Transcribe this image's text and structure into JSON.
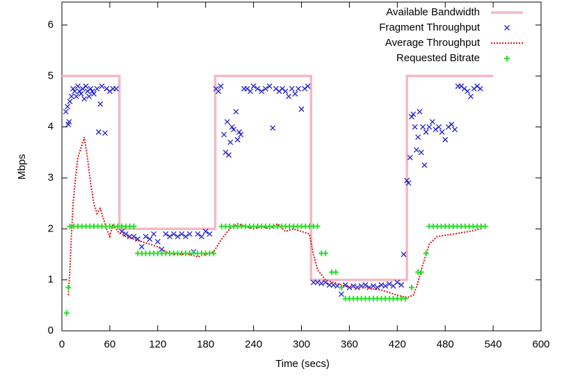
{
  "chart_data": {
    "type": "scatter",
    "xlabel": "Time (secs)",
    "ylabel": "Mbps",
    "xlim": [
      0,
      600
    ],
    "ylim": [
      0,
      6.45
    ],
    "xticks": [
      0,
      60,
      120,
      180,
      240,
      300,
      360,
      420,
      480,
      540,
      600
    ],
    "yticks": [
      0,
      1,
      2,
      3,
      4,
      5,
      6
    ],
    "legend": "top-right",
    "series": [
      {
        "name": "Available Bandwidth",
        "color": "#f4b8c4",
        "marker": "line",
        "x": [
          0,
          72,
          72,
          192,
          192,
          312,
          312,
          432,
          432,
          540
        ],
        "values": [
          5,
          5,
          2,
          2,
          5,
          5,
          1,
          1,
          5,
          5
        ]
      },
      {
        "name": "Fragment Throughput",
        "color": "#1f1fd0",
        "marker": "x",
        "x": [
          5,
          7,
          8,
          9,
          10,
          12,
          14,
          16,
          18,
          20,
          22,
          24,
          26,
          28,
          30,
          32,
          34,
          36,
          38,
          40,
          44,
          46,
          48,
          50,
          54,
          56,
          60,
          64,
          68,
          75,
          80,
          85,
          90,
          95,
          100,
          105,
          110,
          115,
          120,
          125,
          130,
          135,
          140,
          145,
          150,
          155,
          160,
          165,
          170,
          175,
          180,
          185,
          193,
          196,
          199,
          203,
          205,
          207,
          209,
          211,
          213,
          215,
          218,
          220,
          222,
          224,
          228,
          232,
          236,
          240,
          245,
          250,
          255,
          260,
          264,
          268,
          272,
          276,
          280,
          284,
          288,
          292,
          296,
          300,
          304,
          308,
          315,
          320,
          325,
          330,
          335,
          340,
          345,
          350,
          355,
          360,
          365,
          370,
          375,
          380,
          385,
          390,
          395,
          400,
          405,
          410,
          415,
          420,
          425,
          428,
          432,
          434,
          436,
          438,
          440,
          442,
          444,
          446,
          448,
          450,
          452,
          454,
          456,
          460,
          464,
          468,
          472,
          476,
          480,
          484,
          488,
          492,
          496,
          500,
          504,
          508,
          512,
          516,
          520,
          524
        ],
        "values": [
          4.3,
          4.4,
          4.05,
          4.1,
          4.5,
          4.6,
          4.75,
          4.7,
          4.6,
          4.8,
          4.7,
          4.65,
          4.75,
          4.55,
          4.8,
          4.7,
          4.6,
          4.75,
          4.7,
          4.65,
          4.75,
          3.9,
          4.45,
          4.8,
          3.88,
          4.75,
          4.7,
          4.75,
          4.75,
          1.95,
          1.9,
          1.85,
          1.85,
          1.8,
          1.65,
          1.85,
          1.8,
          1.9,
          1.75,
          1.6,
          1.9,
          1.85,
          1.9,
          1.85,
          1.9,
          1.85,
          1.9,
          1.55,
          1.9,
          1.85,
          1.95,
          1.9,
          4.75,
          4.7,
          4.8,
          3.85,
          3.5,
          4.1,
          3.45,
          3.7,
          4.0,
          3.95,
          4.3,
          3.75,
          3.9,
          3.85,
          4.75,
          4.75,
          4.7,
          4.8,
          4.75,
          4.7,
          4.75,
          4.8,
          3.98,
          4.75,
          4.7,
          4.75,
          4.7,
          4.6,
          4.75,
          4.65,
          4.75,
          4.35,
          4.75,
          4.8,
          0.95,
          0.95,
          0.93,
          0.95,
          0.9,
          0.9,
          0.88,
          0.72,
          0.9,
          0.85,
          0.88,
          0.85,
          0.88,
          0.9,
          0.85,
          0.88,
          0.85,
          0.9,
          0.88,
          0.92,
          0.88,
          0.95,
          0.9,
          1.5,
          2.95,
          2.9,
          3.4,
          4.2,
          4.25,
          4.0,
          3.55,
          3.8,
          4.3,
          3.5,
          4.0,
          3.25,
          3.9,
          4.0,
          4.1,
          3.95,
          4.0,
          3.9,
          3.75,
          4.0,
          4.05,
          3.95,
          4.8,
          4.8,
          4.75,
          4.7,
          4.6,
          4.75,
          4.8,
          4.75
        ]
      },
      {
        "name": "Average Throughput",
        "color": "#e01010",
        "marker": "dotted",
        "x": [
          8,
          10,
          12,
          14,
          17,
          20,
          24,
          28,
          32,
          36,
          40,
          44,
          48,
          52,
          56,
          60,
          64,
          70,
          80,
          90,
          100,
          110,
          120,
          130,
          140,
          150,
          160,
          170,
          180,
          190,
          200,
          210,
          220,
          230,
          240,
          250,
          260,
          270,
          280,
          290,
          300,
          310,
          315,
          320,
          330,
          340,
          350,
          360,
          380,
          400,
          420,
          432,
          440,
          445,
          450,
          460,
          470,
          490,
          510,
          525
        ],
        "values": [
          0.7,
          1.2,
          1.9,
          2.5,
          3.0,
          3.4,
          3.6,
          3.8,
          3.4,
          2.9,
          2.5,
          2.3,
          2.4,
          2.2,
          2.0,
          1.85,
          2.1,
          1.95,
          1.85,
          1.8,
          1.75,
          1.7,
          1.65,
          1.55,
          1.5,
          1.5,
          1.5,
          1.45,
          1.5,
          1.55,
          1.8,
          2.0,
          2.1,
          2.05,
          2.0,
          2.05,
          2.0,
          2.1,
          1.95,
          2.0,
          1.95,
          1.9,
          1.5,
          1.2,
          1.0,
          0.95,
          0.9,
          0.85,
          0.85,
          0.8,
          0.7,
          0.65,
          0.7,
          0.9,
          1.2,
          1.7,
          1.85,
          1.9,
          1.95,
          2.0
        ]
      },
      {
        "name": "Requested Bitrate",
        "color": "#22e022",
        "marker": "+",
        "x": [
          6,
          8,
          10,
          15,
          20,
          25,
          30,
          35,
          40,
          45,
          50,
          55,
          60,
          65,
          70,
          75,
          80,
          85,
          90,
          95,
          100,
          105,
          110,
          115,
          120,
          125,
          130,
          135,
          140,
          145,
          150,
          155,
          160,
          165,
          170,
          175,
          180,
          185,
          190,
          200,
          205,
          210,
          215,
          220,
          225,
          230,
          235,
          240,
          245,
          250,
          255,
          260,
          265,
          270,
          275,
          280,
          285,
          290,
          295,
          300,
          305,
          310,
          315,
          320,
          325,
          330,
          338,
          343,
          350,
          355,
          360,
          365,
          370,
          375,
          380,
          385,
          390,
          395,
          400,
          405,
          410,
          415,
          420,
          425,
          430,
          438,
          446,
          450,
          456,
          460,
          465,
          470,
          475,
          480,
          485,
          490,
          495,
          500,
          505,
          510,
          515,
          520,
          525,
          530
        ],
        "values": [
          0.35,
          0.85,
          2.05,
          2.05,
          2.05,
          2.05,
          2.05,
          2.05,
          2.05,
          2.05,
          2.05,
          2.05,
          2.05,
          2.05,
          2.05,
          2.05,
          2.05,
          2.05,
          2.05,
          1.52,
          1.52,
          1.52,
          1.52,
          1.52,
          1.52,
          1.52,
          1.52,
          1.52,
          1.52,
          1.52,
          1.52,
          1.52,
          1.52,
          1.52,
          1.52,
          1.52,
          1.52,
          1.52,
          1.52,
          2.05,
          2.05,
          2.05,
          2.05,
          2.05,
          2.05,
          2.05,
          2.05,
          2.05,
          2.05,
          2.05,
          2.05,
          2.05,
          2.05,
          2.05,
          2.05,
          2.05,
          2.05,
          2.05,
          2.05,
          2.05,
          2.05,
          2.05,
          2.05,
          2.05,
          1.52,
          1.52,
          1.15,
          1.15,
          0.85,
          0.63,
          0.63,
          0.63,
          0.63,
          0.63,
          0.63,
          0.63,
          0.63,
          0.63,
          0.63,
          0.63,
          0.63,
          0.63,
          0.63,
          0.63,
          0.63,
          0.85,
          1.15,
          1.15,
          1.52,
          2.05,
          2.05,
          2.05,
          2.05,
          2.05,
          2.05,
          2.05,
          2.05,
          2.05,
          2.05,
          2.05,
          2.05,
          2.05,
          2.05,
          2.05
        ]
      }
    ]
  }
}
